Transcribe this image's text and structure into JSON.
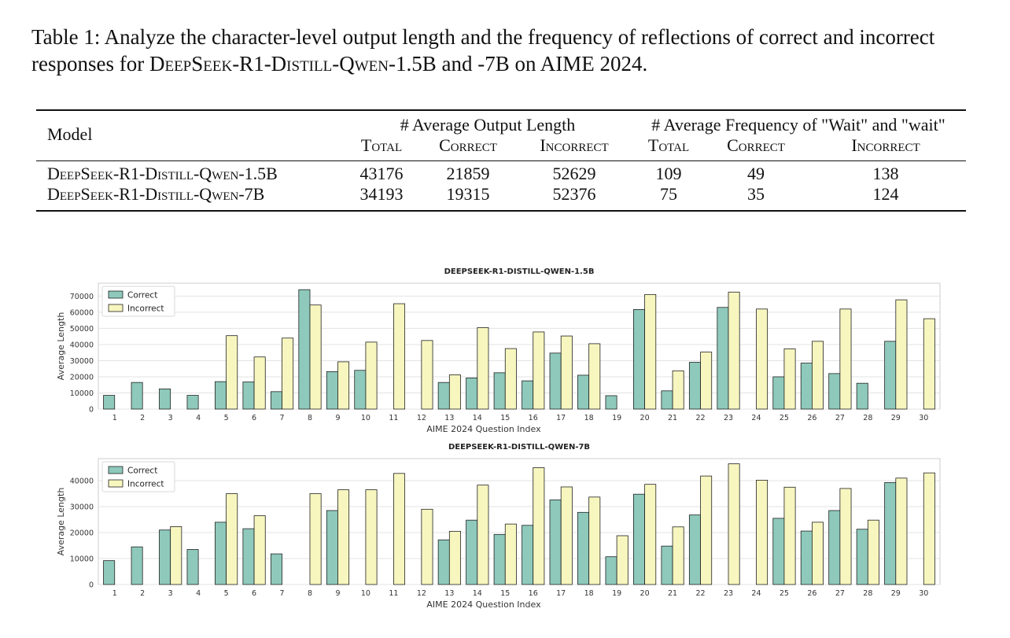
{
  "caption": {
    "text_a": "Table 1: Analyze the character-level output length and the frequency of reflections of correct and incorrect responses for ",
    "model_a": "DeepSeek-R1-Distill-Qwen",
    "text_b": "-1.5B and -7B on AIME 2024."
  },
  "table": {
    "model_header": "Model",
    "group1": "# Average Output Length",
    "group2": "# Average Frequency of \"Wait\" and \"wait\"",
    "sub": [
      "Total",
      "Correct",
      "Incorrect",
      "Total",
      "Correct",
      "Incorrect"
    ],
    "rows": [
      {
        "model": "DeepSeek-R1-Distill-Qwen-1.5B",
        "vals": [
          "43176",
          "21859",
          "52629",
          "109",
          "49",
          "138"
        ]
      },
      {
        "model": "DeepSeek-R1-Distill-Qwen-7B",
        "vals": [
          "34193",
          "19315",
          "52376",
          "75",
          "35",
          "124"
        ]
      }
    ]
  },
  "chart_data": [
    {
      "type": "bar",
      "title": "DEEPSEEK-R1-DISTILL-QWEN-1.5B",
      "xlabel": "AIME 2024 Question Index",
      "ylabel": "Average Length",
      "ylim": [
        0,
        78000
      ],
      "yticks": [
        0,
        10000,
        20000,
        30000,
        40000,
        50000,
        60000,
        70000
      ],
      "categories": [
        "1",
        "2",
        "3",
        "4",
        "5",
        "6",
        "7",
        "8",
        "9",
        "10",
        "11",
        "12",
        "13",
        "14",
        "15",
        "16",
        "17",
        "18",
        "19",
        "20",
        "21",
        "22",
        "23",
        "24",
        "25",
        "26",
        "27",
        "28",
        "29",
        "30"
      ],
      "legend_position": "top-left",
      "grid": true,
      "series": [
        {
          "name": "Correct",
          "color": "#8ec9bb",
          "values": [
            8500,
            16500,
            12500,
            8500,
            17000,
            16800,
            10800,
            74000,
            23200,
            24000,
            null,
            null,
            16500,
            19300,
            22500,
            17500,
            34700,
            21000,
            8300,
            61700,
            11300,
            29000,
            63000,
            null,
            20000,
            28500,
            22000,
            16000,
            42000,
            null
          ]
        },
        {
          "name": "Incorrect",
          "color": "#f7f6bf",
          "values": [
            null,
            null,
            null,
            null,
            45500,
            32300,
            44000,
            64500,
            29300,
            41500,
            65300,
            42500,
            21200,
            50500,
            37500,
            47800,
            45300,
            40500,
            null,
            71000,
            23700,
            35300,
            72500,
            62000,
            37300,
            42000,
            62000,
            null,
            67700,
            56000
          ]
        }
      ]
    },
    {
      "type": "bar",
      "title": "DEEPSEEK-R1-DISTILL-QWEN-7B",
      "xlabel": "AIME 2024 Question Index",
      "ylabel": "Average Length",
      "ylim": [
        0,
        48500
      ],
      "yticks": [
        0,
        10000,
        20000,
        30000,
        40000
      ],
      "categories": [
        "1",
        "2",
        "3",
        "4",
        "5",
        "6",
        "7",
        "8",
        "9",
        "10",
        "11",
        "12",
        "13",
        "14",
        "15",
        "16",
        "17",
        "18",
        "19",
        "20",
        "21",
        "22",
        "23",
        "24",
        "25",
        "26",
        "27",
        "28",
        "29",
        "30"
      ],
      "legend_position": "top-left",
      "grid": true,
      "series": [
        {
          "name": "Correct",
          "color": "#8ec9bb",
          "values": [
            9200,
            14500,
            21000,
            13500,
            24000,
            21500,
            11800,
            null,
            28500,
            null,
            null,
            null,
            17200,
            24800,
            19300,
            22800,
            32600,
            27800,
            10700,
            34800,
            14800,
            26800,
            null,
            null,
            25500,
            20600,
            28500,
            21300,
            39300,
            null
          ]
        },
        {
          "name": "Incorrect",
          "color": "#f7f6bf",
          "values": [
            null,
            null,
            22300,
            null,
            35000,
            26500,
            null,
            35000,
            36500,
            36500,
            42800,
            29000,
            20500,
            38300,
            23300,
            45000,
            37600,
            33700,
            18800,
            38600,
            22200,
            41800,
            46500,
            40200,
            37500,
            24000,
            37000,
            24800,
            41000,
            43000
          ]
        }
      ]
    }
  ]
}
